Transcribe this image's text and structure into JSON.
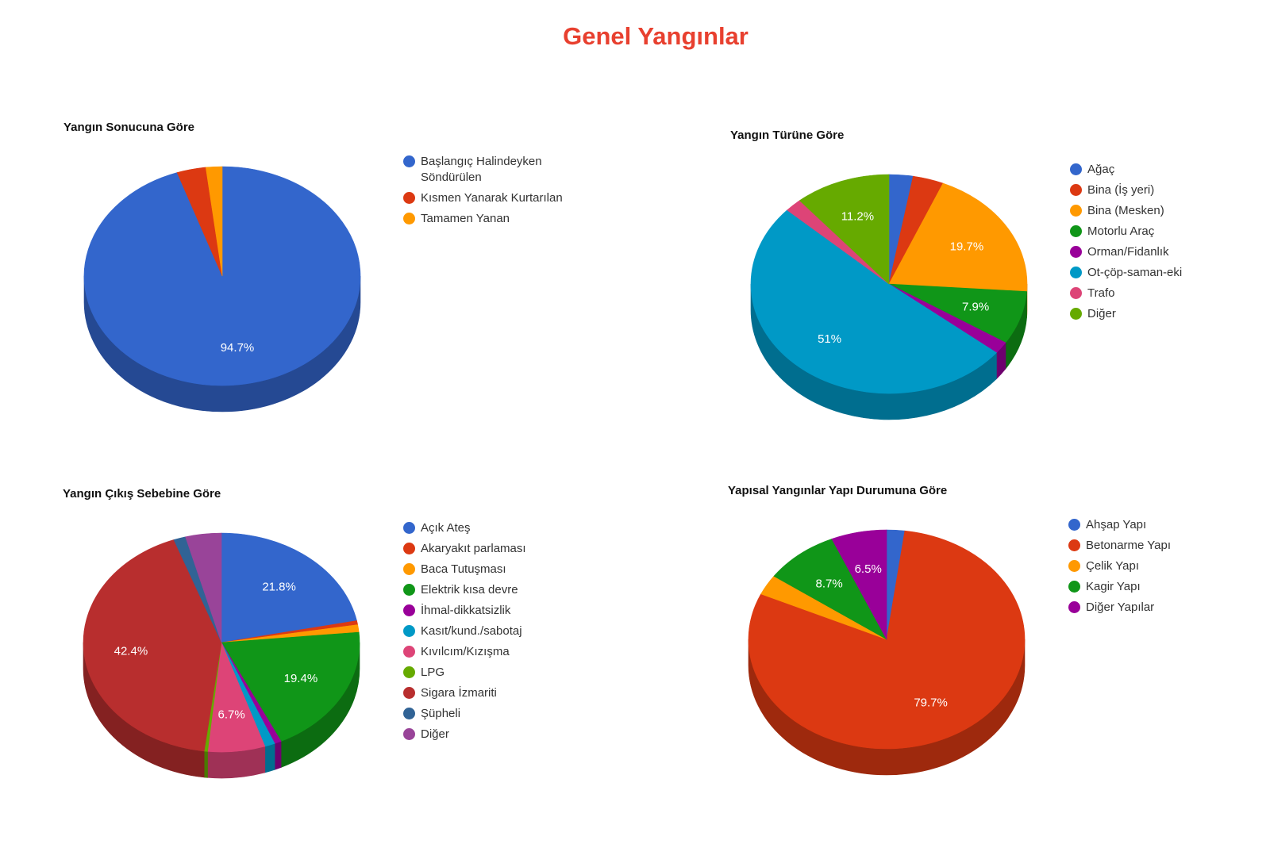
{
  "page": {
    "title": "Genel Yangınlar"
  },
  "chart_data": [
    {
      "type": "pie",
      "title": "Yangın Sonucuna Göre",
      "categories": [
        "Başlangıç Halindeyken Söndürülen",
        "Kısmen Yanarak Kurtarılan",
        "Tamamen Yanan"
      ],
      "values": [
        94.7,
        3.4,
        1.9
      ],
      "data_labels": [
        "94.7%",
        "",
        ""
      ],
      "colors": [
        "#3366cc",
        "#dc3912",
        "#ff9900"
      ],
      "legend_position": "right",
      "is_3d": true
    },
    {
      "type": "pie",
      "title": "Yangın Türüne Göre",
      "categories": [
        "Ağaç",
        "Bina (İş yeri)",
        "Bina (Mesken)",
        "Motorlu Araç",
        "Orman/Fidanlık",
        "Ot-çöp-saman-eki",
        "Trafo",
        "Diğer"
      ],
      "values": [
        2.8,
        3.6,
        19.7,
        7.9,
        1.8,
        51.0,
        2.0,
        11.2
      ],
      "data_labels": [
        "",
        "",
        "19.7%",
        "7.9%",
        "",
        "51%",
        "",
        "11.2%"
      ],
      "colors": [
        "#3366cc",
        "#dc3912",
        "#ff9900",
        "#109618",
        "#990099",
        "#0099c6",
        "#dd4477",
        "#66aa00"
      ],
      "legend_position": "right",
      "is_3d": true
    },
    {
      "type": "pie",
      "title": "Yangın Çıkış Sebebine Göre",
      "categories": [
        "Açık Ateş",
        "Akaryakıt parlaması",
        "Baca Tutuşması",
        "Elektrik kısa devre",
        "İhmal-dikkatsizlik",
        "Kasıt/kund./sabotaj",
        "Kıvılcım/Kızışma",
        "LPG",
        "Sigara İzmariti",
        "Şüpheli",
        "Diğer"
      ],
      "values": [
        21.8,
        0.6,
        1.1,
        19.4,
        0.8,
        1.2,
        6.7,
        0.4,
        42.4,
        1.4,
        4.2
      ],
      "data_labels": [
        "21.8%",
        "",
        "",
        "19.4%",
        "",
        "",
        "6.7%",
        "",
        "42.4%",
        "",
        ""
      ],
      "colors": [
        "#3366cc",
        "#dc3912",
        "#ff9900",
        "#109618",
        "#990099",
        "#0099c6",
        "#dd4477",
        "#66aa00",
        "#b82e2e",
        "#316395",
        "#994499"
      ],
      "legend_position": "right",
      "is_3d": true
    },
    {
      "type": "pie",
      "title": "Yapısal Yangınlar Yapı Durumuna Göre",
      "categories": [
        "Ahşap Yapı",
        "Betonarme Yapı",
        "Çelik Yapı",
        "Kagir Yapı",
        "Diğer Yapılar"
      ],
      "values": [
        2.1,
        79.7,
        3.0,
        8.7,
        6.5
      ],
      "data_labels": [
        "",
        "79.7%",
        "",
        "8.7%",
        "6.5%"
      ],
      "colors": [
        "#3366cc",
        "#dc3912",
        "#ff9900",
        "#109618",
        "#990099"
      ],
      "legend_position": "right",
      "is_3d": true
    }
  ]
}
